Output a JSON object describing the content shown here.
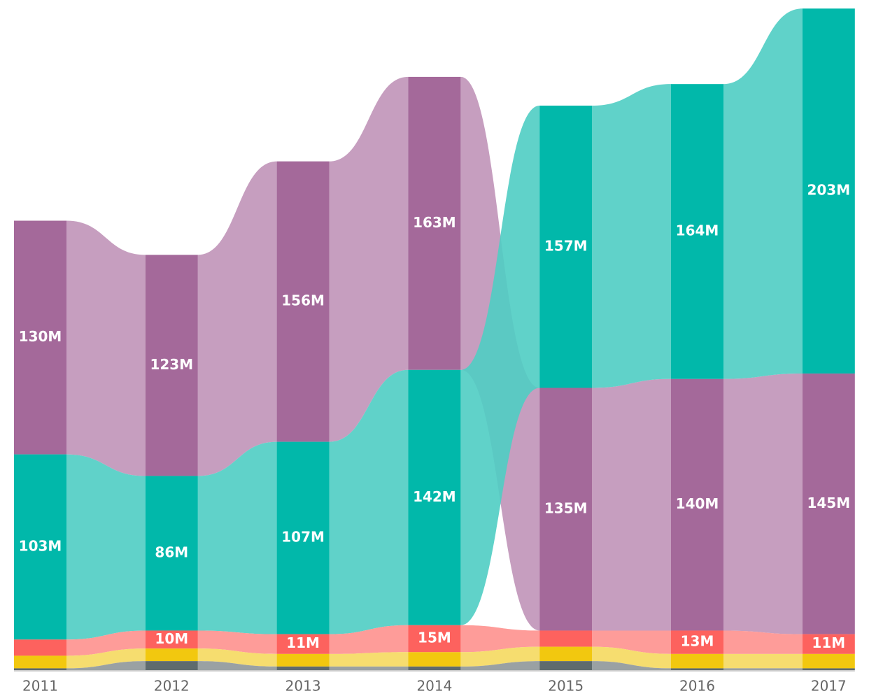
{
  "chart_data": {
    "type": "ribbon",
    "categories": [
      "2011",
      "2012",
      "2013",
      "2014",
      "2015",
      "2016",
      "2017"
    ],
    "series": [
      {
        "color": "#a4699a",
        "ribbon_color": "#c093b8",
        "values": [
          130,
          123,
          156,
          163,
          135,
          140,
          145
        ],
        "value_labels": [
          "130M",
          "123M",
          "156M",
          "163M",
          "135M",
          "140M",
          "145M"
        ]
      },
      {
        "color": "#01b8aa",
        "ribbon_color": "#4fcdc3",
        "values": [
          103,
          86,
          107,
          142,
          157,
          164,
          203
        ],
        "value_labels": [
          "103M",
          "86M",
          "107M",
          "142M",
          "157M",
          "164M",
          "203M"
        ]
      },
      {
        "color": "#fd625e",
        "ribbon_color": "#fe918e",
        "values": [
          9,
          10,
          11,
          15,
          9,
          13,
          11
        ],
        "value_labels": [
          null,
          "10M",
          "11M",
          "15M",
          null,
          "13M",
          "11M"
        ]
      },
      {
        "color": "#f2c80f",
        "ribbon_color": "#f5d95f",
        "values": [
          7,
          7,
          7,
          8,
          8,
          8,
          8
        ]
      },
      {
        "color": "#5f6b6d",
        "ribbon_color": "#8f9799",
        "values": [
          1,
          5,
          2,
          2,
          5,
          1,
          1
        ]
      }
    ]
  }
}
